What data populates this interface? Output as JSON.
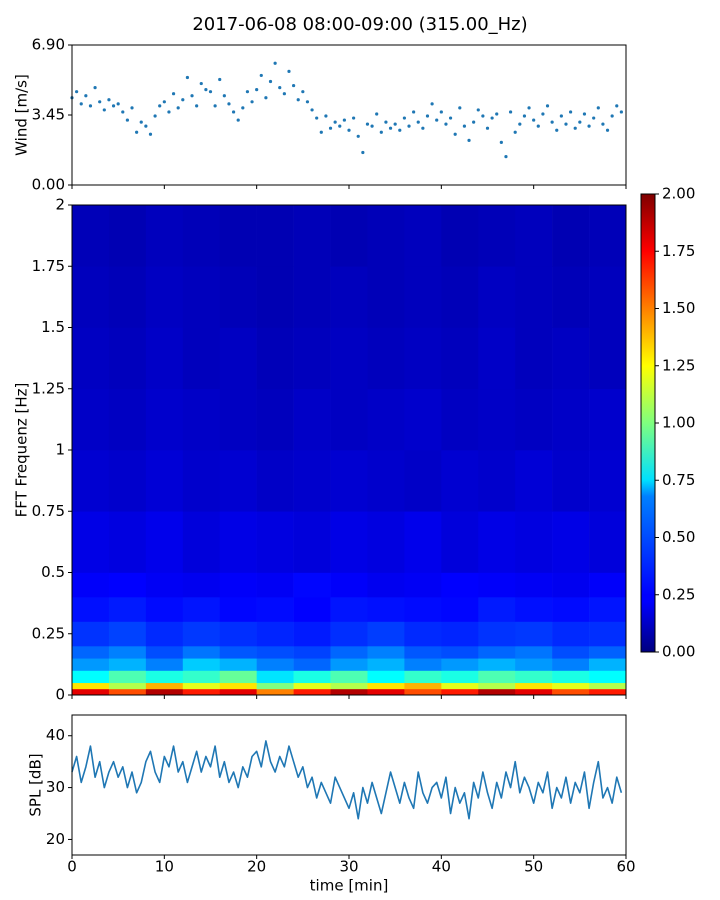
{
  "chart_data": [
    {
      "type": "scatter",
      "title": "2017-06-08 08:00-09:00 (315.00_Hz)",
      "ylabel": "Wind [m/s]",
      "color": "#1f77b4",
      "xlim": [
        0,
        60
      ],
      "ylim": [
        0,
        6.9
      ],
      "yticks": [
        {
          "value": 0,
          "label": "0.00"
        },
        {
          "value": 3.45,
          "label": "3.45"
        },
        {
          "value": 6.9,
          "label": "6.90"
        }
      ],
      "x": [
        0,
        0.5,
        1,
        1.5,
        2,
        2.5,
        3,
        3.5,
        4,
        4.5,
        5,
        5.5,
        6,
        6.5,
        7,
        7.5,
        8,
        8.5,
        9,
        9.5,
        10,
        10.5,
        11,
        11.5,
        12,
        12.5,
        13,
        13.5,
        14,
        14.5,
        15,
        15.5,
        16,
        16.5,
        17,
        17.5,
        18,
        18.5,
        19,
        19.5,
        20,
        20.5,
        21,
        21.5,
        22,
        22.5,
        23,
        23.5,
        24,
        24.5,
        25,
        25.5,
        26,
        26.5,
        27,
        27.5,
        28,
        28.5,
        29,
        29.5,
        30,
        30.5,
        31,
        31.5,
        32,
        32.5,
        33,
        33.5,
        34,
        34.5,
        35,
        35.5,
        36,
        36.5,
        37,
        37.5,
        38,
        38.5,
        39,
        39.5,
        40,
        40.5,
        41,
        41.5,
        42,
        42.5,
        43,
        43.5,
        44,
        44.5,
        45,
        45.5,
        46,
        46.5,
        47,
        47.5,
        48,
        48.5,
        49,
        49.5,
        50,
        50.5,
        51,
        51.5,
        52,
        52.5,
        53,
        53.5,
        54,
        54.5,
        55,
        55.5,
        56,
        56.5,
        57,
        57.5,
        58,
        58.5,
        59,
        59.5
      ],
      "values": [
        4.3,
        4.6,
        4.0,
        4.4,
        3.9,
        4.8,
        4.1,
        3.7,
        4.2,
        3.9,
        4.0,
        3.6,
        3.2,
        3.8,
        2.6,
        3.1,
        2.9,
        2.5,
        3.4,
        3.9,
        4.1,
        3.6,
        4.5,
        3.8,
        4.2,
        5.3,
        4.4,
        3.9,
        5.0,
        4.7,
        4.6,
        3.9,
        5.2,
        4.4,
        4.0,
        3.6,
        3.2,
        3.8,
        4.6,
        4.1,
        4.7,
        5.4,
        4.3,
        5.1,
        6.0,
        4.8,
        4.5,
        5.6,
        4.9,
        4.2,
        4.6,
        4.1,
        3.7,
        3.3,
        2.6,
        3.4,
        2.8,
        3.1,
        2.9,
        3.2,
        2.7,
        3.3,
        2.4,
        1.6,
        3.0,
        2.9,
        3.5,
        2.6,
        3.1,
        2.8,
        3.0,
        2.7,
        3.3,
        2.9,
        3.6,
        3.1,
        2.8,
        3.4,
        4.0,
        3.2,
        3.6,
        3.0,
        3.3,
        2.5,
        3.8,
        2.9,
        2.2,
        3.1,
        3.7,
        3.4,
        2.8,
        3.3,
        3.5,
        2.1,
        1.4,
        3.6,
        2.6,
        3.0,
        3.4,
        3.8,
        3.2,
        2.9,
        3.5,
        3.9,
        3.1,
        2.7,
        3.4,
        3.0,
        3.6,
        2.8,
        3.1,
        3.5,
        2.9,
        3.3,
        3.8,
        3.0,
        2.7,
        3.4,
        3.9,
        3.6
      ]
    },
    {
      "type": "heatmap",
      "ylabel": "FFT Frequenz [Hz]",
      "colormap": "jet",
      "xlim": [
        0,
        60
      ],
      "ylim": [
        0,
        2
      ],
      "yticks": [
        0,
        0.25,
        0.5,
        0.75,
        1,
        1.25,
        1.5,
        1.75,
        2
      ],
      "x_edges": [
        0,
        4,
        8,
        12,
        16,
        20,
        24,
        28,
        32,
        36,
        40,
        44,
        48,
        52,
        56,
        60
      ],
      "y_edges": [
        0,
        0.025,
        0.05,
        0.1,
        0.15,
        0.2,
        0.3,
        0.4,
        0.5,
        0.75,
        1,
        1.25,
        1.5,
        1.75,
        2
      ],
      "z": [
        [
          1.8,
          1.6,
          1.9,
          1.7,
          1.8,
          1.5,
          1.7,
          1.9,
          1.8,
          1.6,
          1.7,
          1.9,
          1.8,
          1.6,
          1.7
        ],
        [
          1.3,
          1.1,
          1.4,
          1.2,
          1.3,
          1.0,
          1.2,
          1.1,
          1.3,
          1.4,
          1.2,
          1.1,
          1.3,
          1.2,
          1.1
        ],
        [
          0.75,
          0.9,
          0.8,
          0.85,
          0.95,
          0.7,
          0.8,
          0.9,
          0.75,
          0.85,
          0.8,
          0.9,
          0.85,
          0.8,
          0.75
        ],
        [
          0.55,
          0.6,
          0.5,
          0.65,
          0.6,
          0.5,
          0.45,
          0.55,
          0.6,
          0.5,
          0.55,
          0.6,
          0.55,
          0.5,
          0.6
        ],
        [
          0.45,
          0.5,
          0.4,
          0.48,
          0.42,
          0.4,
          0.38,
          0.45,
          0.5,
          0.42,
          0.4,
          0.45,
          0.48,
          0.4,
          0.44
        ],
        [
          0.35,
          0.38,
          0.33,
          0.36,
          0.34,
          0.32,
          0.3,
          0.34,
          0.37,
          0.33,
          0.32,
          0.35,
          0.36,
          0.33,
          0.34
        ],
        [
          0.28,
          0.3,
          0.27,
          0.29,
          0.26,
          0.27,
          0.25,
          0.29,
          0.28,
          0.27,
          0.26,
          0.3,
          0.28,
          0.27,
          0.29
        ],
        [
          0.24,
          0.25,
          0.23,
          0.22,
          0.24,
          0.23,
          0.26,
          0.24,
          0.22,
          0.23,
          0.25,
          0.24,
          0.23,
          0.22,
          0.24
        ],
        [
          0.2,
          0.19,
          0.21,
          0.18,
          0.2,
          0.19,
          0.18,
          0.2,
          0.19,
          0.21,
          0.18,
          0.2,
          0.19,
          0.2,
          0.18
        ],
        [
          0.16,
          0.15,
          0.17,
          0.15,
          0.16,
          0.14,
          0.15,
          0.16,
          0.15,
          0.14,
          0.16,
          0.15,
          0.17,
          0.15,
          0.16
        ],
        [
          0.14,
          0.13,
          0.15,
          0.14,
          0.13,
          0.12,
          0.14,
          0.13,
          0.14,
          0.15,
          0.13,
          0.14,
          0.13,
          0.14,
          0.15
        ],
        [
          0.13,
          0.12,
          0.14,
          0.12,
          0.13,
          0.11,
          0.12,
          0.13,
          0.12,
          0.13,
          0.12,
          0.14,
          0.12,
          0.13,
          0.12
        ],
        [
          0.12,
          0.11,
          0.13,
          0.12,
          0.11,
          0.1,
          0.11,
          0.12,
          0.11,
          0.12,
          0.11,
          0.13,
          0.12,
          0.11,
          0.12
        ],
        [
          0.11,
          0.1,
          0.12,
          0.11,
          0.1,
          0.1,
          0.11,
          0.1,
          0.11,
          0.12,
          0.1,
          0.11,
          0.12,
          0.1,
          0.11
        ]
      ],
      "clim": [
        0,
        2
      ],
      "cticks": [
        {
          "value": 0,
          "label": "0.00"
        },
        {
          "value": 0.25,
          "label": "0.25"
        },
        {
          "value": 0.5,
          "label": "0.50"
        },
        {
          "value": 0.75,
          "label": "0.75"
        },
        {
          "value": 1,
          "label": "1.00"
        },
        {
          "value": 1.25,
          "label": "1.25"
        },
        {
          "value": 1.5,
          "label": "1.50"
        },
        {
          "value": 1.75,
          "label": "1.75"
        },
        {
          "value": 2,
          "label": "2.00"
        }
      ]
    },
    {
      "type": "line",
      "ylabel": "SPL [dB]",
      "xlabel": "time [min]",
      "color": "#1f77b4",
      "xlim": [
        0,
        60
      ],
      "ylim": [
        17,
        44
      ],
      "yticks": [
        20,
        30,
        40
      ],
      "xticks": [
        0,
        10,
        20,
        30,
        40,
        50,
        60
      ],
      "x": [
        0,
        0.5,
        1,
        1.5,
        2,
        2.5,
        3,
        3.5,
        4,
        4.5,
        5,
        5.5,
        6,
        6.5,
        7,
        7.5,
        8,
        8.5,
        9,
        9.5,
        10,
        10.5,
        11,
        11.5,
        12,
        12.5,
        13,
        13.5,
        14,
        14.5,
        15,
        15.5,
        16,
        16.5,
        17,
        17.5,
        18,
        18.5,
        19,
        19.5,
        20,
        20.5,
        21,
        21.5,
        22,
        22.5,
        23,
        23.5,
        24,
        24.5,
        25,
        25.5,
        26,
        26.5,
        27,
        27.5,
        28,
        28.5,
        29,
        29.5,
        30,
        30.5,
        31,
        31.5,
        32,
        32.5,
        33,
        33.5,
        34,
        34.5,
        35,
        35.5,
        36,
        36.5,
        37,
        37.5,
        38,
        38.5,
        39,
        39.5,
        40,
        40.5,
        41,
        41.5,
        42,
        42.5,
        43,
        43.5,
        44,
        44.5,
        45,
        45.5,
        46,
        46.5,
        47,
        47.5,
        48,
        48.5,
        49,
        49.5,
        50,
        50.5,
        51,
        51.5,
        52,
        52.5,
        53,
        53.5,
        54,
        54.5,
        55,
        55.5,
        56,
        56.5,
        57,
        57.5,
        58,
        58.5,
        59,
        59.5
      ],
      "values": [
        33,
        36,
        31,
        34,
        38,
        32,
        35,
        30,
        33,
        35,
        32,
        34,
        30,
        33,
        29,
        31,
        35,
        37,
        33,
        31,
        36,
        34,
        38,
        33,
        35,
        31,
        34,
        37,
        33,
        36,
        34,
        38,
        32,
        35,
        31,
        33,
        30,
        34,
        32,
        36,
        37,
        34,
        39,
        35,
        33,
        36,
        34,
        38,
        35,
        32,
        34,
        30,
        32,
        28,
        31,
        29,
        27,
        32,
        30,
        28,
        26,
        29,
        24,
        30,
        27,
        31,
        28,
        25,
        29,
        33,
        30,
        27,
        31,
        28,
        26,
        33,
        29,
        27,
        30,
        31,
        28,
        32,
        25,
        30,
        27,
        29,
        24,
        31,
        28,
        33,
        29,
        26,
        31,
        28,
        33,
        30,
        35,
        29,
        32,
        30,
        27,
        31,
        29,
        33,
        26,
        30,
        28,
        32,
        27,
        31,
        29,
        33,
        26,
        31,
        35,
        28,
        30,
        27,
        32,
        29
      ]
    }
  ]
}
